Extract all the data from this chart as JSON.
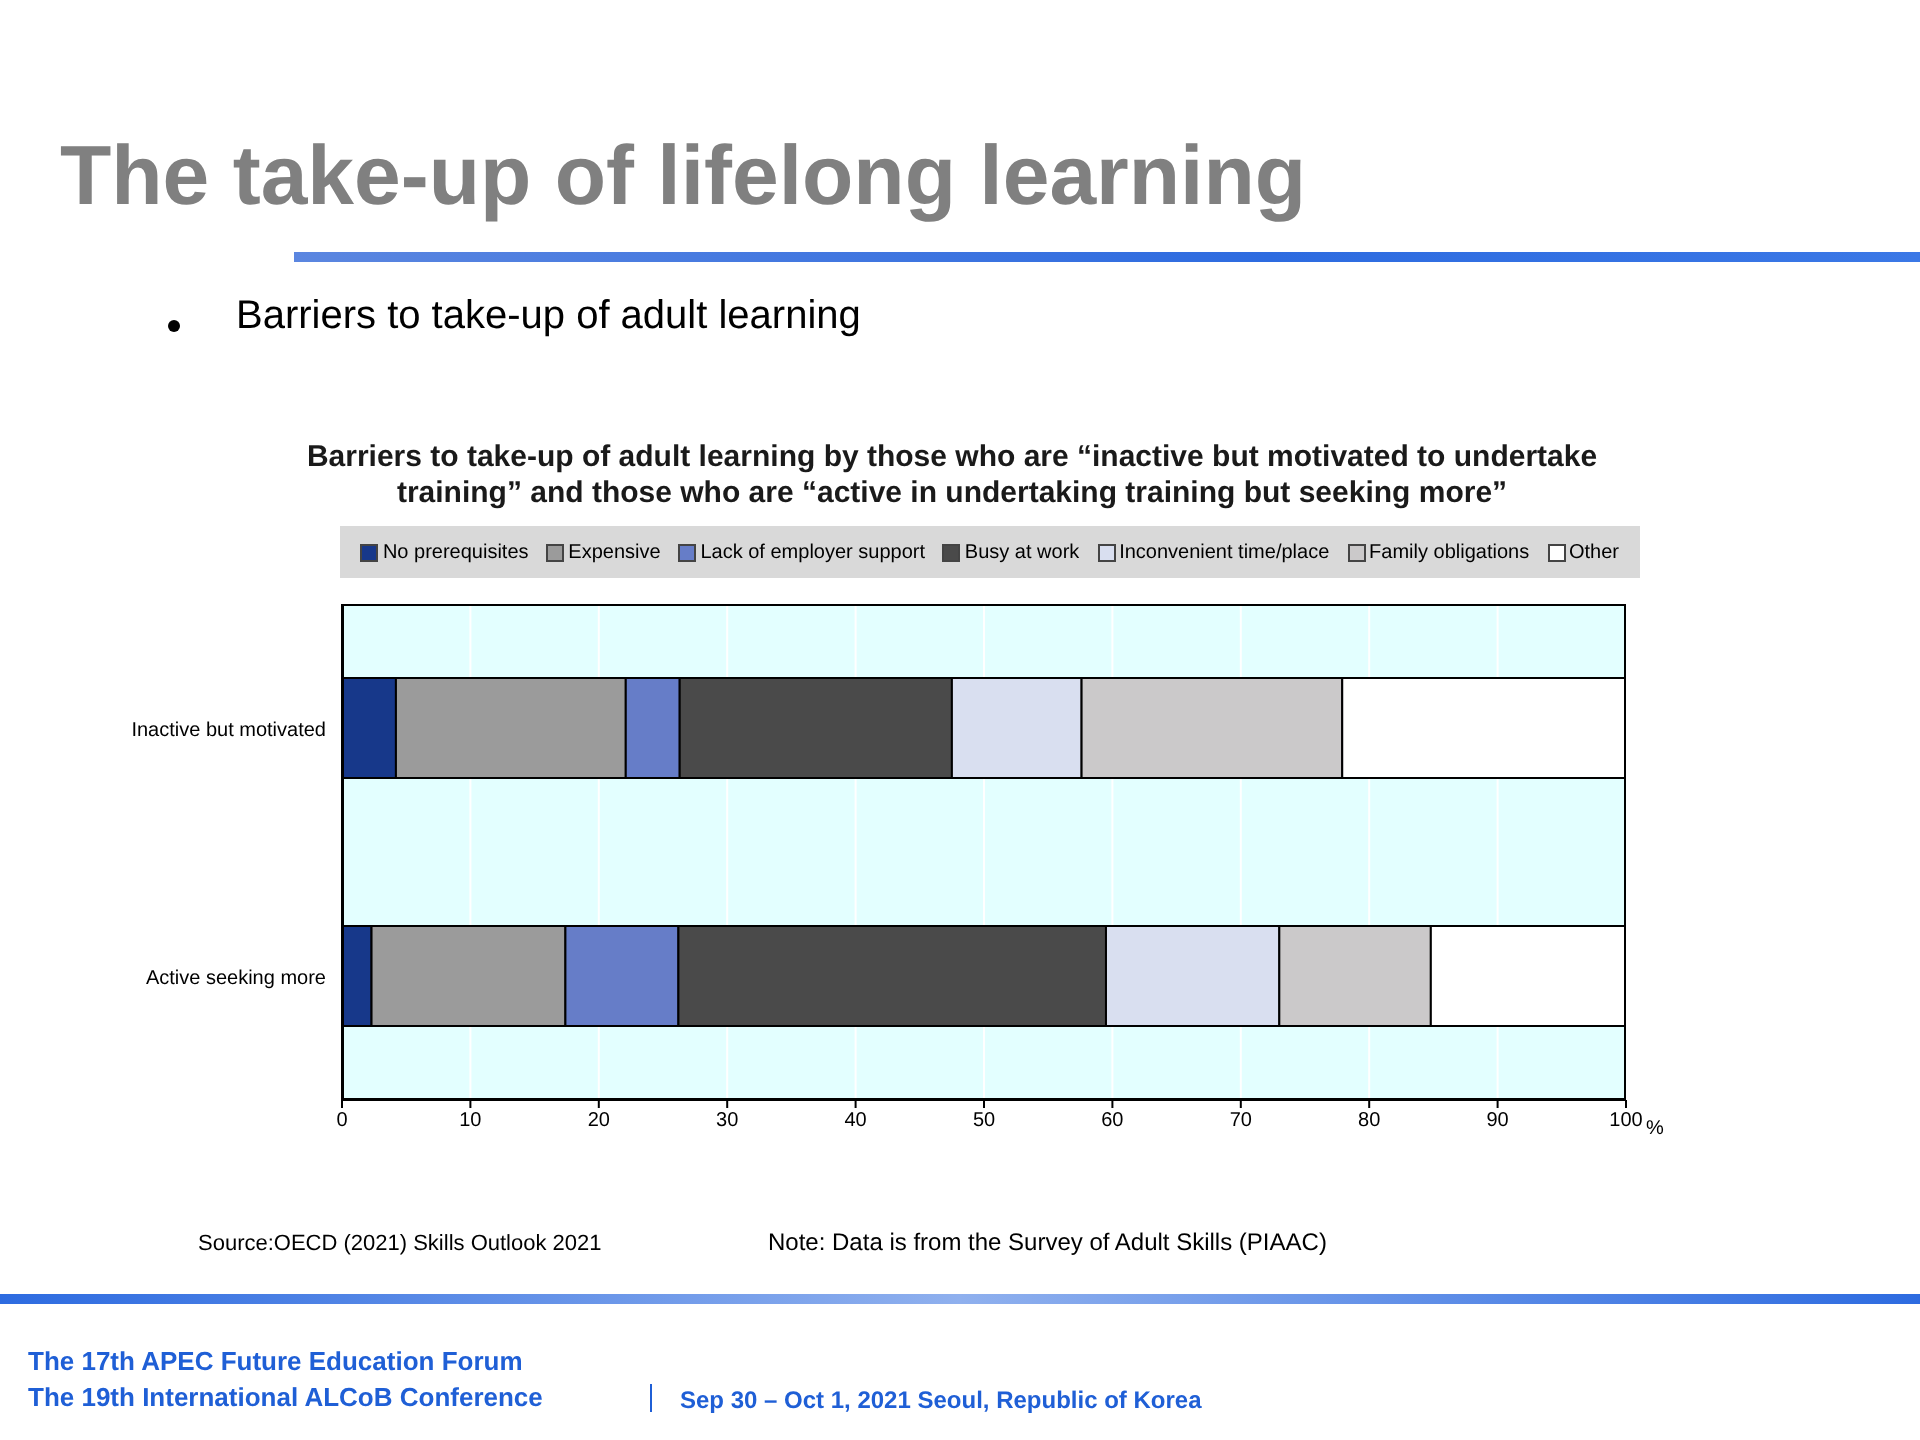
{
  "chart_data": {
    "type": "bar",
    "orientation": "horizontal",
    "stacked": true,
    "title": "The take-up of lifelong learning",
    "subtitle": "Barriers to take-up of adult learning by those who are “inactive but motivated to undertake training” and those who are “active in undertaking training but seeking more”",
    "xlabel": "%",
    "categories": [
      "Inactive but motivated",
      "Active seeking more"
    ],
    "series": [
      {
        "name": "No prerequisites",
        "color": "#17388a",
        "values": [
          4.2,
          2.3
        ]
      },
      {
        "name": "Expensive",
        "color": "#9b9b9b",
        "values": [
          17.9,
          15.1
        ]
      },
      {
        "name": "Lack of employer support",
        "color": "#667dc8",
        "values": [
          4.2,
          8.8
        ]
      },
      {
        "name": "Busy at work",
        "color": "#4a4a4a",
        "values": [
          21.2,
          33.3
        ]
      },
      {
        "name": "Inconvenient time/place",
        "color": "#d9dff0",
        "values": [
          10.1,
          13.5
        ]
      },
      {
        "name": "Family obligations",
        "color": "#cbc9ca",
        "values": [
          20.3,
          11.8
        ]
      },
      {
        "name": "Other",
        "color": "#ffffff",
        "values": [
          22.1,
          15.2
        ]
      }
    ],
    "xlim": [
      0,
      100
    ],
    "xticks": [
      0,
      10,
      20,
      30,
      40,
      50,
      60,
      70,
      80,
      90,
      100
    ],
    "grid": "x",
    "legend": "top",
    "annotations": [
      "Barriers to take-up of adult learning",
      "Source:OECD (2021) Skills Outlook 2021",
      "Note: Data is from the Survey of Adult Skills (PIAAC)",
      "The 17th APEC Future Education Forum",
      "The 19th International ALCoB Conference",
      "Sep 30 – Oct 1, 2021 Seoul, Republic of Korea"
    ]
  }
}
